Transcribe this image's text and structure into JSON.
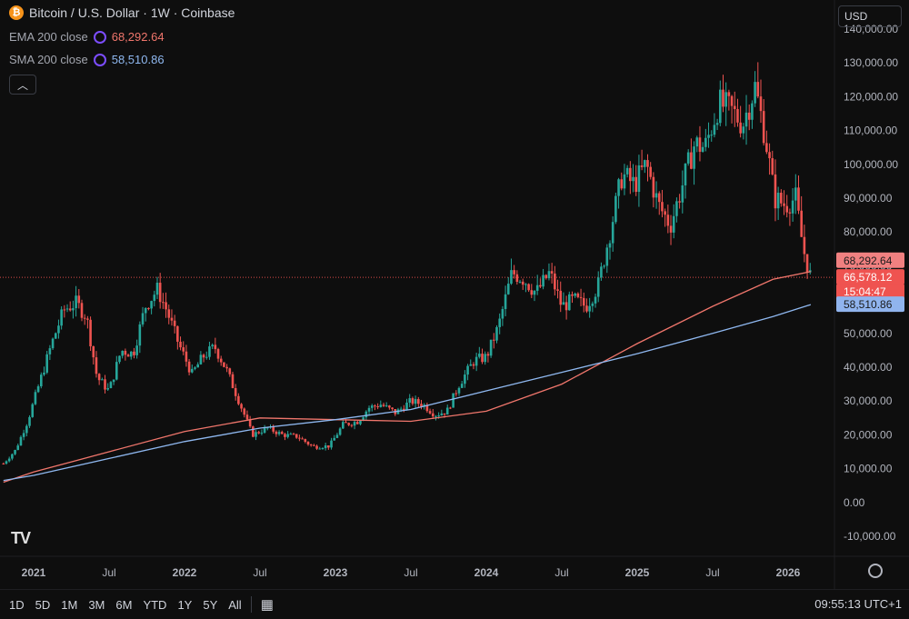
{
  "header": {
    "coin_icon": "bitcoin-icon",
    "title": "Bitcoin / U.S. Dollar · 1W · Coinbase"
  },
  "indicators": [
    {
      "name": "EMA 200 close",
      "value": "68,292.64",
      "color": "#f0766c"
    },
    {
      "name": "SMA 200 close",
      "value": "58,510.86",
      "color": "#8fb8f0"
    }
  ],
  "currency": "USD",
  "price_labels": {
    "ema": "68,292.64",
    "last": "66,578.12",
    "countdown": "15:04:47",
    "sma": "58,510.86"
  },
  "range_buttons": [
    "1D",
    "5D",
    "1M",
    "3M",
    "6M",
    "YTD",
    "1Y",
    "5Y",
    "All"
  ],
  "clock": "09:55:13 UTC+1",
  "colors": {
    "up": "#26a69a",
    "down": "#ef5350",
    "background": "#0e0e0e"
  },
  "chart_data": {
    "type": "candlestick",
    "title": "Bitcoin / U.S. Dollar · 1W · Coinbase",
    "y_ticks": [
      "-10,000.00",
      "0.00",
      "10,000.00",
      "20,000.00",
      "30,000.00",
      "40,000.00",
      "50,000.00",
      "60,000.00",
      "70,000.00",
      "80,000.00",
      "90,000.00",
      "100,000.00",
      "110,000.00",
      "120,000.00",
      "130,000.00",
      "140,000.00"
    ],
    "x_ticks": [
      {
        "label": "2021",
        "t": 2021.0
      },
      {
        "label": "Jul",
        "t": 2021.5
      },
      {
        "label": "2022",
        "t": 2022.0
      },
      {
        "label": "Jul",
        "t": 2022.5
      },
      {
        "label": "2023",
        "t": 2023.0
      },
      {
        "label": "Jul",
        "t": 2023.5
      },
      {
        "label": "2024",
        "t": 2024.0
      },
      {
        "label": "Jul",
        "t": 2024.5
      },
      {
        "label": "2025",
        "t": 2025.0
      },
      {
        "label": "Jul",
        "t": 2025.5
      },
      {
        "label": "2026",
        "t": 2026.0
      }
    ],
    "ylim": [
      -10000,
      140000
    ],
    "last_price": 66578.12,
    "price_path": [
      [
        2020.8,
        11500
      ],
      [
        2020.88,
        15500
      ],
      [
        2020.96,
        24000
      ],
      [
        2021.05,
        37000
      ],
      [
        2021.12,
        47000
      ],
      [
        2021.2,
        57000
      ],
      [
        2021.28,
        59000
      ],
      [
        2021.35,
        55000
      ],
      [
        2021.42,
        37000
      ],
      [
        2021.5,
        33000
      ],
      [
        2021.58,
        45000
      ],
      [
        2021.66,
        44000
      ],
      [
        2021.74,
        58000
      ],
      [
        2021.82,
        63000
      ],
      [
        2021.88,
        57000
      ],
      [
        2021.96,
        47000
      ],
      [
        2022.05,
        38000
      ],
      [
        2022.12,
        43000
      ],
      [
        2022.2,
        46000
      ],
      [
        2022.28,
        39000
      ],
      [
        2022.36,
        30000
      ],
      [
        2022.45,
        20000
      ],
      [
        2022.55,
        22000
      ],
      [
        2022.65,
        20000
      ],
      [
        2022.75,
        19500
      ],
      [
        2022.85,
        16500
      ],
      [
        2022.96,
        16700
      ],
      [
        2023.05,
        23000
      ],
      [
        2023.15,
        24000
      ],
      [
        2023.22,
        28000
      ],
      [
        2023.3,
        29000
      ],
      [
        2023.4,
        26500
      ],
      [
        2023.5,
        30000
      ],
      [
        2023.58,
        29000
      ],
      [
        2023.66,
        26000
      ],
      [
        2023.74,
        27000
      ],
      [
        2023.82,
        35000
      ],
      [
        2023.92,
        42000
      ],
      [
        2024.0,
        43000
      ],
      [
        2024.08,
        52000
      ],
      [
        2024.17,
        68000
      ],
      [
        2024.25,
        66000
      ],
      [
        2024.33,
        62000
      ],
      [
        2024.42,
        68000
      ],
      [
        2024.5,
        58000
      ],
      [
        2024.58,
        60000
      ],
      [
        2024.66,
        58000
      ],
      [
        2024.74,
        64000
      ],
      [
        2024.82,
        80000
      ],
      [
        2024.9,
        97000
      ],
      [
        2024.98,
        94000
      ],
      [
        2025.06,
        100000
      ],
      [
        2025.14,
        88000
      ],
      [
        2025.22,
        82000
      ],
      [
        2025.3,
        94000
      ],
      [
        2025.38,
        106000
      ],
      [
        2025.45,
        105000
      ],
      [
        2025.54,
        118000
      ],
      [
        2025.62,
        116000
      ],
      [
        2025.7,
        112000
      ],
      [
        2025.78,
        123000
      ],
      [
        2025.85,
        108000
      ],
      [
        2025.91,
        90000
      ],
      [
        2025.98,
        88000
      ],
      [
        2026.05,
        90000
      ],
      [
        2026.1,
        75000
      ],
      [
        2026.15,
        66578
      ]
    ],
    "series": [
      {
        "name": "EMA 200 close",
        "color": "#f0766c",
        "points": [
          [
            2020.8,
            6000
          ],
          [
            2021.0,
            9000
          ],
          [
            2021.5,
            15000
          ],
          [
            2022.0,
            21000
          ],
          [
            2022.5,
            25000
          ],
          [
            2023.0,
            24500
          ],
          [
            2023.5,
            24000
          ],
          [
            2024.0,
            27000
          ],
          [
            2024.5,
            35000
          ],
          [
            2025.0,
            47000
          ],
          [
            2025.5,
            58000
          ],
          [
            2025.9,
            66000
          ],
          [
            2026.15,
            68292.64
          ]
        ]
      },
      {
        "name": "SMA 200 close",
        "color": "#8fb8f0",
        "points": [
          [
            2020.8,
            6500
          ],
          [
            2021.0,
            8000
          ],
          [
            2021.5,
            13000
          ],
          [
            2022.0,
            18000
          ],
          [
            2022.5,
            22000
          ],
          [
            2023.0,
            24500
          ],
          [
            2023.5,
            27500
          ],
          [
            2024.0,
            33000
          ],
          [
            2024.5,
            38500
          ],
          [
            2025.0,
            44000
          ],
          [
            2025.5,
            50000
          ],
          [
            2025.9,
            55000
          ],
          [
            2026.15,
            58510.86
          ]
        ]
      }
    ]
  }
}
